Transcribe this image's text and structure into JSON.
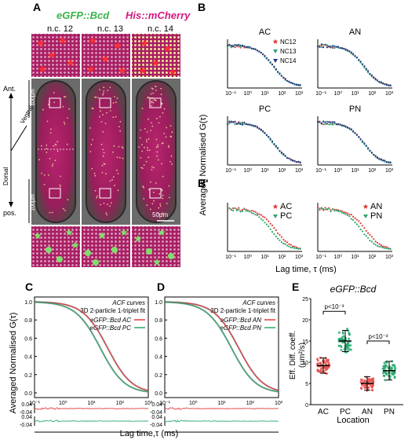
{
  "panel_a": {
    "label": "A",
    "header_green": "eGFP::Bcd",
    "header_magenta": "His::mCherry",
    "stages": [
      "n.c. 12",
      "n.c. 13",
      "n.c. 14"
    ],
    "axis_ant": "Ant.",
    "axis_pos": "pos.",
    "axis_ventral": "Ventral",
    "axis_dorsal": "Dorsal",
    "scale_top": "100μm",
    "scale_bottom": "100μm",
    "scale_inset": "50μm"
  },
  "panel_b": {
    "label": "B",
    "label2": "B'",
    "ylabel": "Averaged Normalised G(τ)",
    "xlabel": "Lag time, τ (ms)",
    "ticks": [
      "10⁻¹",
      "10⁰",
      "10¹",
      "10²",
      "10³"
    ],
    "subplots": [
      {
        "title": "AC",
        "legend": [
          "NC12",
          "NC13",
          "NC14"
        ]
      },
      {
        "title": "AN",
        "legend": []
      },
      {
        "title": "PC",
        "legend": []
      },
      {
        "title": "PN",
        "legend": []
      },
      {
        "title": "",
        "legend": [
          "AC",
          "PC"
        ]
      },
      {
        "title": "",
        "legend": [
          "AN",
          "PN"
        ]
      }
    ]
  },
  "panel_c": {
    "label": "C",
    "legend": [
      "ACF curves",
      "3D 2-particle 1-triplet fit",
      "eGFP::Bcd AC",
      "eGFP::Bcd PC"
    ],
    "yticks": [
      "1.0",
      "0.8",
      "0.6",
      "0.4",
      "0.2",
      "0.0"
    ],
    "res_ticks": [
      "0.04",
      "-0.04"
    ]
  },
  "panel_d": {
    "label": "D",
    "legend": [
      "ACF curves",
      "3D 2-particle 1-triplet fit",
      "eGFP::Bcd AN",
      "eGFP::Bcd PN"
    ],
    "yticks": [
      "1.0",
      "0.8",
      "0.6",
      "0.4",
      "0.2",
      "0.0"
    ],
    "res_ticks": [
      "0.04",
      "-0.04"
    ]
  },
  "cd_shared": {
    "ylabel": "Averaged Normalised G(τ)",
    "xlabel": "Lag time,τ (ms)",
    "xticks": [
      "10⁻¹",
      "10⁰",
      "10¹",
      "10²",
      "10³"
    ]
  },
  "panel_e": {
    "label": "E",
    "title": "eGFP::Bcd",
    "ylabel1": "Eff. Diff. coeff.",
    "ylabel2": "(μm²/s)",
    "xlabel": "Location",
    "categories": [
      "AC",
      "PC",
      "AN",
      "PN"
    ],
    "yticks": [
      "0",
      "5",
      "10",
      "15",
      "20",
      "25"
    ],
    "pval1": "p<10⁻³",
    "pval2": "p<10⁻³",
    "means": [
      9.2,
      15.0,
      5.0,
      8.0
    ],
    "sds": [
      1.8,
      2.5,
      1.6,
      2.2
    ],
    "colors": [
      "#e8504f",
      "#2aa86e",
      "#e8504f",
      "#2aa86e"
    ]
  },
  "colors": {
    "red": "#e03a3a",
    "green": "#2aa86e",
    "navy": "#1f3a8a",
    "magenta": "#c2186f"
  }
}
